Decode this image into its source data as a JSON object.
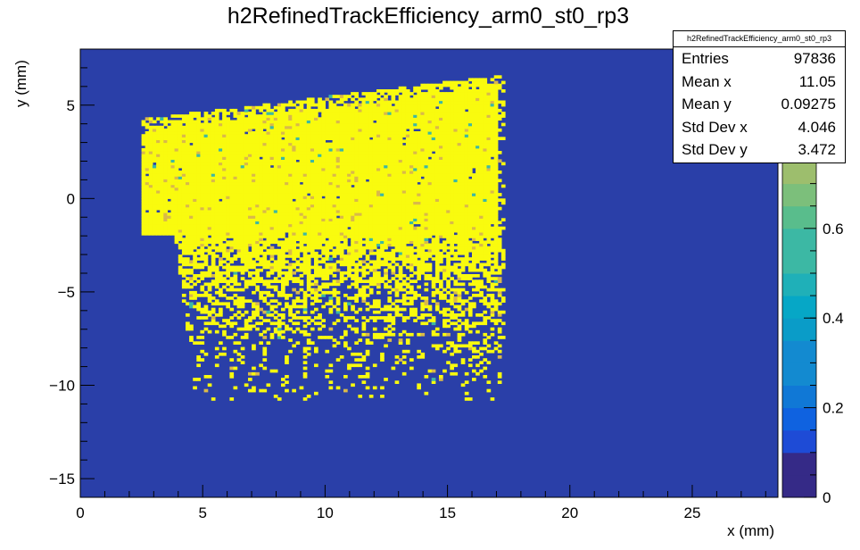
{
  "chart_data": {
    "type": "heatmap",
    "title": "h2RefinedTrackEfficiency_arm0_st0_rp3",
    "xlabel": "x (mm)",
    "ylabel": "y (mm)",
    "xlim": [
      0,
      28.5
    ],
    "ylim": [
      -16,
      8
    ],
    "x_ticks": [
      "0",
      "5",
      "10",
      "15",
      "20",
      "25"
    ],
    "y_ticks": [
      "−15",
      "−10",
      "−5",
      "0",
      "5"
    ],
    "z_ticks": [
      "0",
      "0.2",
      "0.4",
      "0.6"
    ],
    "zlim": [
      0,
      1
    ],
    "grid": false,
    "colors": {
      "background": "#2a3fa8",
      "high": "#f9fb0e",
      "mid": "#d9b94a",
      "palette": [
        "#352a87",
        "#1e4bd6",
        "#0f62e0",
        "#1078d6",
        "#138ad0",
        "#0a9cc8",
        "#06a7c6",
        "#1fb0b8",
        "#3cb8a4",
        "#59bd8c",
        "#7cbf7b",
        "#9dbe6d",
        "#bcbc61",
        "#d7b94f",
        "#f2c335",
        "#f9fb0e"
      ]
    },
    "distribution": {
      "full_efficiency_region": {
        "x": [
          2.5,
          17.0
        ],
        "y_bottom": -2.0,
        "y_top_left": 4.2,
        "y_top_right": 6.5
      },
      "sparse_tail": {
        "x": [
          3.5,
          19.5
        ],
        "y": [
          -10.8,
          -2.0
        ]
      }
    },
    "stats_box": {
      "name": "h2RefinedTrackEfficiency_arm0_st0_rp3",
      "rows": [
        {
          "label": "Entries",
          "value": "97836"
        },
        {
          "label": "Mean x",
          "value": "11.05"
        },
        {
          "label": "Mean y",
          "value": "0.09275"
        },
        {
          "label": "Std Dev x",
          "value": "4.046"
        },
        {
          "label": "Std Dev y",
          "value": "3.472"
        }
      ]
    }
  }
}
